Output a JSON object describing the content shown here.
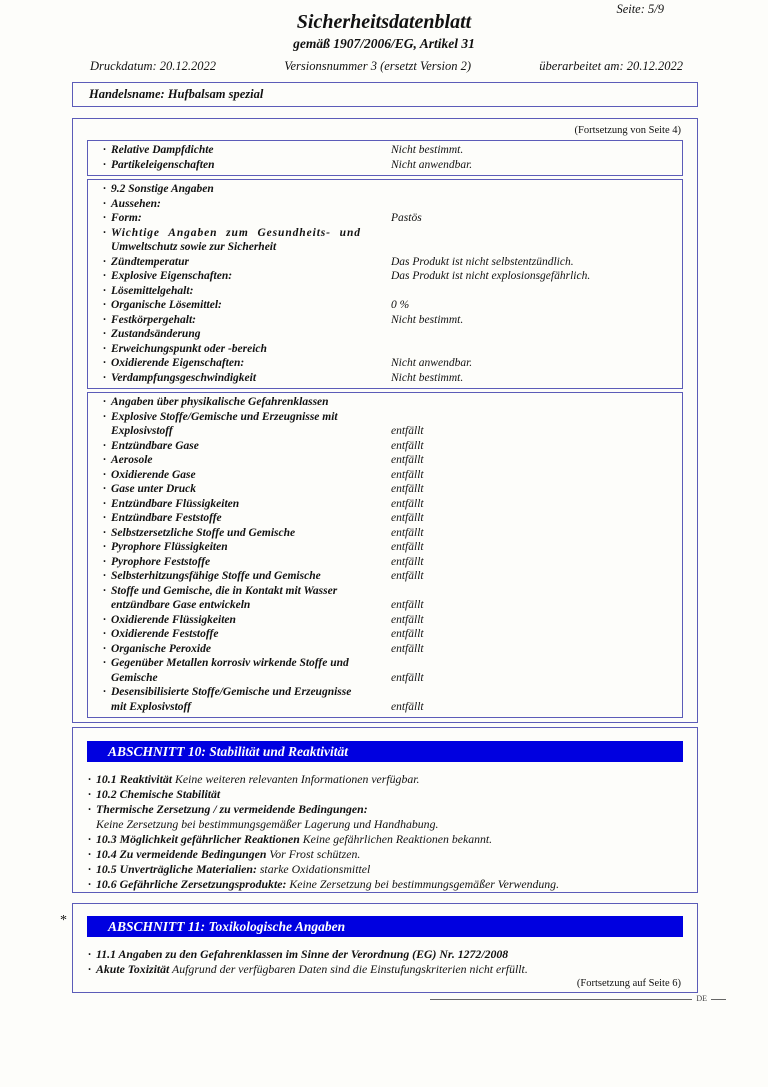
{
  "colors": {
    "box_border": "#5c5cb8",
    "section_bar_bg": "#0000e0",
    "section_bar_text": "#ffffff"
  },
  "header": {
    "page_label": "Seite: 5/9",
    "title": "Sicherheitsdatenblatt",
    "subtitle": "gemäß 1907/2006/EG, Artikel 31",
    "print_date": "Druckdatum: 20.12.2022",
    "version": "Versionsnummer 3 (ersetzt Version 2)",
    "revised": "überarbeitet am: 20.12.2022",
    "trade_name": "Handelsname: Hufbalsam spezial"
  },
  "main_box": {
    "continuation_note": "(Fortsetzung von Seite 4)",
    "tables": [
      {
        "rows": [
          {
            "label": "Relative Dampfdichte",
            "value": "Nicht bestimmt."
          },
          {
            "label": "Partikeleigenschaften",
            "value": "Nicht anwendbar."
          }
        ]
      },
      {
        "rows": [
          {
            "label": "9.2 Sonstige Angaben"
          },
          {
            "label": "Aussehen:"
          },
          {
            "label": "Form:",
            "value": "Pastös"
          },
          {
            "label": "Wichtige Angaben zum Gesundheits- und",
            "label2": "Umweltschutz sowie zur Sicherheit",
            "spaced": true
          },
          {
            "label": "Zündtemperatur",
            "value": "Das Produkt ist nicht selbstentzündlich."
          },
          {
            "label": "Explosive Eigenschaften:",
            "value": "Das Produkt ist nicht explosionsgefährlich."
          },
          {
            "label": "Lösemittelgehalt:"
          },
          {
            "label": "Organische Lösemittel:",
            "value": "0 %"
          },
          {
            "label": "Festkörpergehalt:",
            "value": "Nicht bestimmt."
          },
          {
            "label": "Zustandsänderung"
          },
          {
            "label": "Erweichungspunkt oder -bereich"
          },
          {
            "label": "Oxidierende Eigenschaften:",
            "value": "Nicht anwendbar."
          },
          {
            "label": "Verdampfungsgeschwindigkeit",
            "value": "Nicht bestimmt."
          }
        ]
      },
      {
        "rows": [
          {
            "label": "Angaben über physikalische Gefahrenklassen"
          },
          {
            "label": "Explosive Stoffe/Gemische und Erzeugnisse mit",
            "label2": "Explosivstoff",
            "value": "entfällt",
            "value_on_second": true
          },
          {
            "label": "Entzündbare Gase",
            "value": "entfällt"
          },
          {
            "label": "Aerosole",
            "value": "entfällt"
          },
          {
            "label": "Oxidierende Gase",
            "value": "entfällt"
          },
          {
            "label": "Gase unter Druck",
            "value": "entfällt"
          },
          {
            "label": "Entzündbare Flüssigkeiten",
            "value": "entfällt"
          },
          {
            "label": "Entzündbare Feststoffe",
            "value": "entfällt"
          },
          {
            "label": "Selbstzersetzliche Stoffe und Gemische",
            "value": "entfällt"
          },
          {
            "label": "Pyrophore Flüssigkeiten",
            "value": "entfällt"
          },
          {
            "label": "Pyrophore Feststoffe",
            "value": "entfällt"
          },
          {
            "label": "Selbsterhitzungsfähige Stoffe und Gemische",
            "value": "entfällt"
          },
          {
            "label": "Stoffe und Gemische, die in Kontakt mit Wasser",
            "label2": "entzündbare Gase entwickeln",
            "value": "entfällt",
            "value_on_second": true
          },
          {
            "label": "Oxidierende Flüssigkeiten",
            "value": "entfällt"
          },
          {
            "label": "Oxidierende Feststoffe",
            "value": "entfällt"
          },
          {
            "label": "Organische Peroxide",
            "value": "entfällt"
          },
          {
            "label": "Gegenüber Metallen korrosiv wirkende Stoffe und",
            "label2": "Gemische",
            "value": "entfällt",
            "value_on_second": true
          },
          {
            "label": "Desensibilisierte Stoffe/Gemische und Erzeugnisse",
            "label2": "mit Explosivstoff",
            "value": "entfällt",
            "value_on_second": true
          }
        ]
      }
    ]
  },
  "section10": {
    "header": "ABSCHNITT 10: Stabilität und Reaktivität",
    "rows": [
      {
        "bold": "10.1 Reaktivität",
        "text": "Keine weiteren relevanten Informationen verfügbar."
      },
      {
        "bold": "10.2 Chemische Stabilität"
      },
      {
        "bold": "Thermische Zersetzung / zu vermeidende Bedingungen:"
      },
      {
        "text": "Keine Zersetzung bei bestimmungsgemäßer Lagerung und Handhabung.",
        "no_bullet": true
      },
      {
        "bold": "10.3 Möglichkeit gefährlicher Reaktionen",
        "text": "Keine gefährlichen Reaktionen bekannt."
      },
      {
        "bold": "10.4 Zu vermeidende Bedingungen",
        "text": "Vor Frost schützen."
      },
      {
        "bold": "10.5 Unverträgliche Materialien:",
        "text": "starke Oxidationsmittel"
      },
      {
        "bold": "10.6 Gefährliche Zersetzungsprodukte:",
        "text": "Keine Zersetzung bei bestimmungsgemäßer Verwendung."
      }
    ]
  },
  "section11": {
    "marker": "*",
    "header": "ABSCHNITT 11: Toxikologische Angaben",
    "continuation_note": "(Fortsetzung auf Seite 6)",
    "rows": [
      {
        "bold": "11.1 Angaben zu den Gefahrenklassen im Sinne der Verordnung (EG) Nr. 1272/2008"
      },
      {
        "bold": "Akute Toxizität",
        "text": "Aufgrund der verfügbaren Daten sind die Einstufungskriterien nicht erfüllt."
      }
    ]
  },
  "footer": {
    "lang_code": "DE"
  }
}
